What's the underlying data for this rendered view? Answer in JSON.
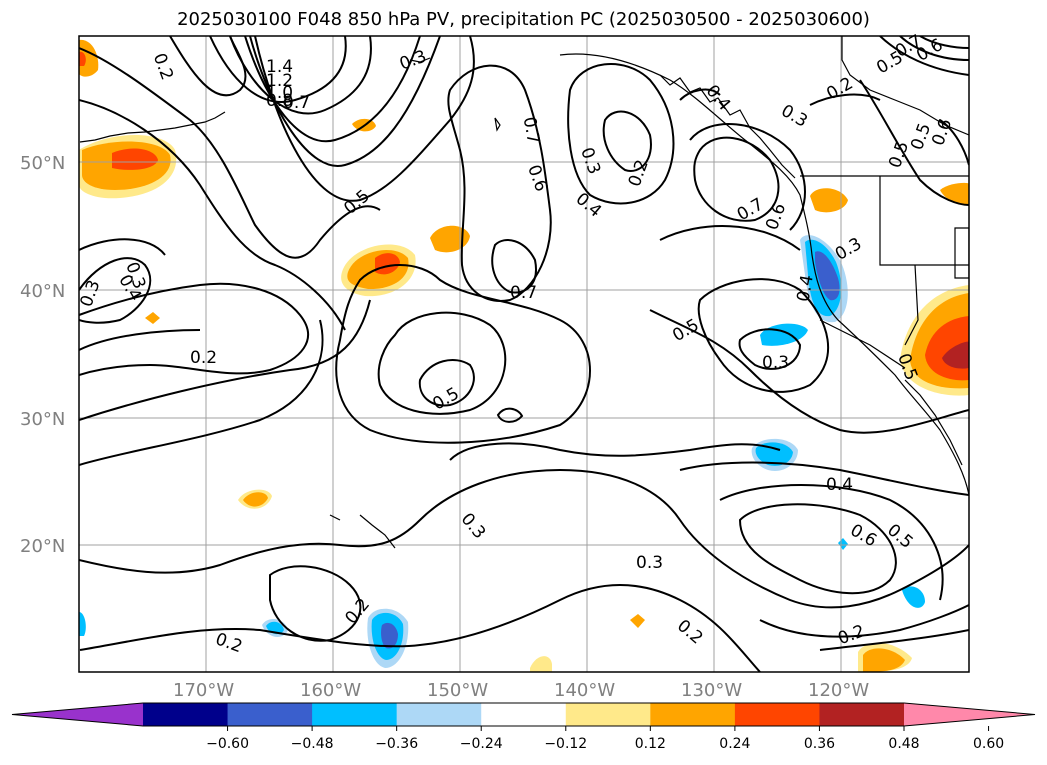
{
  "title": "2025030100 F048 850 hPa PV, precipitation PC (2025030500 - 2025030600)",
  "lat_labels": [
    "50°N",
    "40°N",
    "30°N",
    "20°N"
  ],
  "lon_labels": [
    "170°W",
    "160°W",
    "150°W",
    "140°W",
    "130°W",
    "120°W"
  ],
  "contour_labels": [
    "1.4",
    "1.2",
    "1.0",
    "0.8",
    "0.7",
    "0.2",
    "0.5",
    "0.7",
    "0.6",
    "0.3",
    "0.4",
    "0.2",
    "0.7",
    "0.6",
    "0.3",
    "0.2",
    "0.5",
    "0.6",
    "0.5",
    "0.7",
    "0.5",
    "0.2",
    "0.5",
    "0.3",
    "0.4",
    "0.3",
    "0.3",
    "0.4",
    "0.6",
    "0.5",
    "0.3",
    "0.2",
    "0.2",
    "0.2",
    "0.3",
    "0.2",
    "0.4",
    "0.3",
    "0.5",
    "0.3",
    "0.7",
    "0.5",
    "0.6",
    "0.4"
  ],
  "colorbar": {
    "ticks": [
      "−0.60",
      "−0.48",
      "−0.36",
      "−0.24",
      "−0.12",
      "0.12",
      "0.24",
      "0.36",
      "0.48",
      "0.60"
    ],
    "colors": [
      "#9932cc",
      "#00008b",
      "#3a5fcd",
      "#00bfff",
      "#add8f6",
      "#ffffff",
      "#ffe98a",
      "#ffa500",
      "#ff4500",
      "#b22222",
      "#ff88aa"
    ]
  }
}
